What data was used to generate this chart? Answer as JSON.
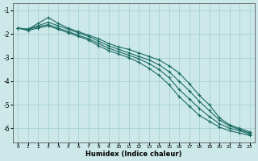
{
  "xlabel": "Humidex (Indice chaleur)",
  "xlim": [
    -0.5,
    23.5
  ],
  "ylim": [
    -6.6,
    -0.7
  ],
  "yticks": [
    -6,
    -5,
    -4,
    -3,
    -2,
    -1
  ],
  "xticks": [
    0,
    1,
    2,
    3,
    4,
    5,
    6,
    7,
    8,
    9,
    10,
    11,
    12,
    13,
    14,
    15,
    16,
    17,
    18,
    19,
    20,
    21,
    22,
    23
  ],
  "bg_color": "#cce8e8",
  "grid_color": "#9ecece",
  "line_color": "#1a6b62",
  "lines": [
    {
      "x": [
        0,
        1,
        2,
        3,
        4,
        5,
        6,
        7,
        8,
        9,
        10,
        11,
        12,
        13,
        14,
        15,
        16,
        17,
        18,
        19,
        20,
        21,
        22,
        23
      ],
      "y": [
        -1.75,
        -1.8,
        -1.55,
        -1.3,
        -1.55,
        -1.75,
        -1.9,
        -2.05,
        -2.2,
        -2.4,
        -2.55,
        -2.65,
        -2.8,
        -2.95,
        -3.1,
        -3.35,
        -3.65,
        -4.1,
        -4.6,
        -5.0,
        -5.55,
        -5.85,
        -6.0,
        -6.15
      ]
    },
    {
      "x": [
        0,
        1,
        2,
        3,
        4,
        5,
        6,
        7,
        8,
        9,
        10,
        11,
        12,
        13,
        14,
        15,
        16,
        17,
        18,
        19,
        20,
        21,
        22,
        23
      ],
      "y": [
        -1.75,
        -1.8,
        -1.65,
        -1.5,
        -1.65,
        -1.8,
        -1.95,
        -2.1,
        -2.3,
        -2.5,
        -2.65,
        -2.8,
        -2.95,
        -3.1,
        -3.3,
        -3.6,
        -4.0,
        -4.4,
        -4.85,
        -5.25,
        -5.65,
        -5.9,
        -6.05,
        -6.2
      ]
    },
    {
      "x": [
        0,
        1,
        2,
        3,
        4,
        5,
        6,
        7,
        8,
        9,
        10,
        11,
        12,
        13,
        14,
        15,
        16,
        17,
        18,
        19,
        20,
        21,
        22,
        23
      ],
      "y": [
        -1.75,
        -1.8,
        -1.7,
        -1.6,
        -1.75,
        -1.9,
        -2.05,
        -2.2,
        -2.4,
        -2.6,
        -2.75,
        -2.9,
        -3.05,
        -3.25,
        -3.5,
        -3.85,
        -4.35,
        -4.75,
        -5.15,
        -5.5,
        -5.8,
        -6.0,
        -6.1,
        -6.25
      ]
    },
    {
      "x": [
        0,
        1,
        2,
        3,
        4,
        5,
        6,
        7,
        8,
        9,
        10,
        11,
        12,
        13,
        14,
        15,
        16,
        17,
        18,
        19,
        20,
        21,
        22,
        23
      ],
      "y": [
        -1.75,
        -1.85,
        -1.75,
        -1.65,
        -1.8,
        -1.95,
        -2.1,
        -2.25,
        -2.5,
        -2.7,
        -2.85,
        -3.0,
        -3.2,
        -3.45,
        -3.75,
        -4.15,
        -4.65,
        -5.05,
        -5.45,
        -5.7,
        -5.95,
        -6.1,
        -6.2,
        -6.3
      ]
    }
  ]
}
